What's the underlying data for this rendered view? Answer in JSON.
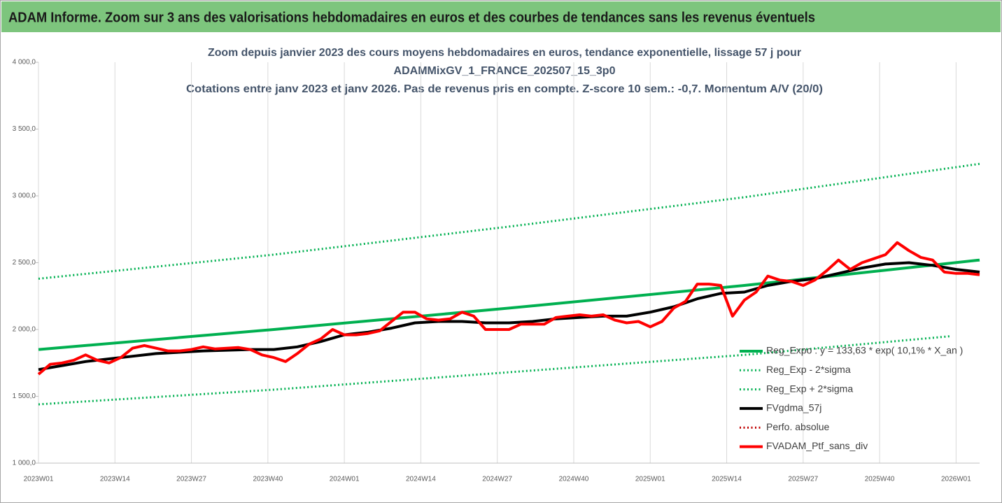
{
  "banner": "ADAM Informe. Zoom sur 3 ans des valorisations hebdomadaires en euros et des courbes de tendances sans les revenus éventuels",
  "chart_data": {
    "type": "line",
    "title": [
      "Zoom depuis janvier 2023 des cours moyens hebdomadaires  en euros, tendance exponentielle, lissage 57 j pour",
      "ADAMMixGV_1_FRANCE_202507_15_3p0",
      "Cotations entre janv 2023 et janv 2026. Pas de revenus pris en compte. Z-score 10 sem.: -0,7. Momentum A/V (20/0)"
    ],
    "xlim": [
      0,
      160
    ],
    "xticks": [
      {
        "value": 0,
        "label": "2023W01"
      },
      {
        "value": 13,
        "label": "2023W14"
      },
      {
        "value": 26,
        "label": "2023W27"
      },
      {
        "value": 39,
        "label": "2023W40"
      },
      {
        "value": 52,
        "label": "2024W01"
      },
      {
        "value": 65,
        "label": "2024W14"
      },
      {
        "value": 78,
        "label": "2024W27"
      },
      {
        "value": 91,
        "label": "2024W40"
      },
      {
        "value": 104,
        "label": "2025W01"
      },
      {
        "value": 117,
        "label": "2025W14"
      },
      {
        "value": 130,
        "label": "2025W27"
      },
      {
        "value": 143,
        "label": "2025W40"
      },
      {
        "value": 156,
        "label": "2026W01"
      }
    ],
    "ylim": [
      1000,
      4000
    ],
    "yticks": [
      {
        "value": 1000,
        "label": "1 000,0"
      },
      {
        "value": 1500,
        "label": "1 500,0"
      },
      {
        "value": 2000,
        "label": "2 000,0"
      },
      {
        "value": 2500,
        "label": "2 500,0"
      },
      {
        "value": 3000,
        "label": "3 000,0"
      },
      {
        "value": 3500,
        "label": "3 500,0"
      },
      {
        "value": 4000,
        "label": "4 000,0"
      }
    ],
    "grid": "x",
    "series": [
      {
        "name": "Reg_Expo : y = 133,63 * exp( 10,1% *  X_an )",
        "color": "#00b050",
        "dash": "solid",
        "x": [
          0,
          40,
          80,
          120,
          160
        ],
        "values": [
          1850,
          2000,
          2160,
          2330,
          2520
        ]
      },
      {
        "name": "Reg_Exp - 2*sigma",
        "color": "#00b050",
        "dash": "dotted",
        "x": [
          0,
          40,
          80,
          120,
          155
        ],
        "values": [
          1440,
          1550,
          1680,
          1810,
          1950
        ]
      },
      {
        "name": "Reg_Exp + 2*sigma",
        "color": "#00b050",
        "dash": "dotted",
        "x": [
          0,
          40,
          80,
          120,
          160
        ],
        "values": [
          2380,
          2560,
          2770,
          2990,
          3240
        ]
      },
      {
        "name": "FVgdma_57j",
        "color": "#000000",
        "dash": "solid",
        "x": [
          0,
          4,
          8,
          12,
          16,
          20,
          24,
          28,
          32,
          36,
          40,
          44,
          48,
          52,
          56,
          60,
          64,
          68,
          72,
          76,
          80,
          84,
          88,
          92,
          96,
          100,
          104,
          108,
          112,
          116,
          120,
          124,
          128,
          132,
          136,
          140,
          144,
          148,
          152,
          156,
          160
        ],
        "values": [
          1700,
          1730,
          1760,
          1780,
          1800,
          1820,
          1830,
          1840,
          1845,
          1850,
          1850,
          1870,
          1910,
          1960,
          1980,
          2010,
          2050,
          2060,
          2060,
          2050,
          2050,
          2060,
          2080,
          2090,
          2100,
          2100,
          2130,
          2170,
          2230,
          2270,
          2280,
          2330,
          2360,
          2380,
          2420,
          2460,
          2490,
          2500,
          2480,
          2450,
          2430
        ]
      },
      {
        "name": "Perfo. absolue",
        "color": "#c00000",
        "dash": "dotted",
        "x": [],
        "values": []
      },
      {
        "name": "FVADAM_Ptf_sans_div",
        "color": "#ff0000",
        "dash": "solid",
        "x": [
          0,
          2,
          4,
          6,
          8,
          10,
          12,
          14,
          16,
          18,
          20,
          22,
          24,
          26,
          28,
          30,
          32,
          34,
          36,
          38,
          40,
          42,
          44,
          46,
          48,
          50,
          52,
          54,
          56,
          58,
          60,
          62,
          64,
          66,
          68,
          70,
          72,
          74,
          76,
          78,
          80,
          82,
          84,
          86,
          88,
          90,
          92,
          94,
          96,
          98,
          100,
          102,
          104,
          106,
          108,
          110,
          112,
          114,
          116,
          118,
          120,
          122,
          124,
          126,
          128,
          130,
          132,
          134,
          136,
          138,
          140,
          142,
          144,
          146,
          148,
          150,
          152,
          154,
          156,
          158,
          160
        ],
        "values": [
          1665,
          1740,
          1750,
          1770,
          1810,
          1770,
          1750,
          1790,
          1860,
          1880,
          1860,
          1840,
          1840,
          1850,
          1870,
          1855,
          1860,
          1865,
          1850,
          1810,
          1790,
          1760,
          1820,
          1890,
          1930,
          2000,
          1960,
          1960,
          1970,
          1990,
          2060,
          2130,
          2130,
          2080,
          2070,
          2080,
          2130,
          2100,
          2000,
          2000,
          2000,
          2040,
          2040,
          2040,
          2090,
          2100,
          2110,
          2100,
          2110,
          2070,
          2050,
          2060,
          2020,
          2060,
          2160,
          2210,
          2340,
          2340,
          2330,
          2100,
          2220,
          2280,
          2400,
          2370,
          2360,
          2330,
          2370,
          2440,
          2520,
          2450,
          2500,
          2530,
          2560,
          2650,
          2590,
          2540,
          2520,
          2430,
          2420,
          2420,
          2410
        ]
      }
    ]
  }
}
